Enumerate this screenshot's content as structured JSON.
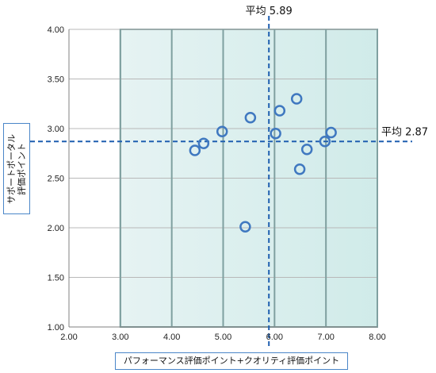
{
  "chart_data": {
    "type": "scatter",
    "title": "",
    "xlabel": "パフォーマンス評価ポイント+クオリティ評価ポイント",
    "ylabel_lines": [
      "サポートポータル",
      "評価ポイント"
    ],
    "xlim": [
      2.0,
      8.0
    ],
    "ylim": [
      1.0,
      4.0
    ],
    "x_ticks": [
      "2.00",
      "3.00",
      "4.00",
      "5.00",
      "6.00",
      "7.00",
      "8.00"
    ],
    "y_ticks": [
      "1.00",
      "1.50",
      "2.00",
      "2.50",
      "3.00",
      "3.50",
      "4.00"
    ],
    "grid": true,
    "shaded_band_x": [
      3.0,
      8.0
    ],
    "points": [
      {
        "x": 4.45,
        "y": 2.78
      },
      {
        "x": 4.62,
        "y": 2.85
      },
      {
        "x": 4.98,
        "y": 2.97
      },
      {
        "x": 5.43,
        "y": 2.01
      },
      {
        "x": 5.53,
        "y": 3.11
      },
      {
        "x": 6.02,
        "y": 2.95
      },
      {
        "x": 6.1,
        "y": 3.18
      },
      {
        "x": 6.43,
        "y": 3.3
      },
      {
        "x": 6.49,
        "y": 2.59
      },
      {
        "x": 6.63,
        "y": 2.79
      },
      {
        "x": 6.98,
        "y": 2.87
      },
      {
        "x": 7.1,
        "y": 2.96
      }
    ],
    "mean_x": 5.89,
    "mean_y": 2.87,
    "mean_x_label": "平均 5.89",
    "mean_y_label": "平均 2.87",
    "colors": {
      "marker": "#3f78c0",
      "mean_line": "#1f5fb0",
      "band_fill": "#e6f3f3",
      "band_edge": "#d0ebe9",
      "band_border": "#7fa0a0",
      "grid": "#b8b8b8"
    }
  }
}
